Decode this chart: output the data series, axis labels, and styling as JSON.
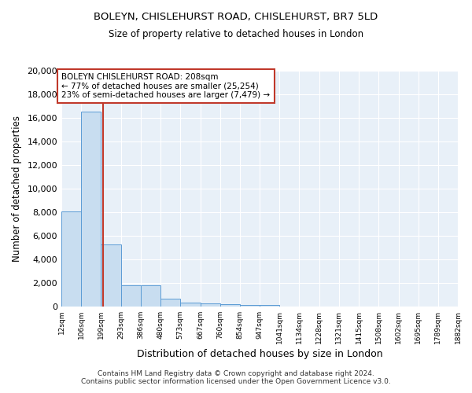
{
  "title1": "BOLEYN, CHISLEHURST ROAD, CHISLEHURST, BR7 5LD",
  "title2": "Size of property relative to detached houses in London",
  "xlabel": "Distribution of detached houses by size in London",
  "ylabel": "Number of detached properties",
  "footnote": "Contains HM Land Registry data © Crown copyright and database right 2024.\nContains public sector information licensed under the Open Government Licence v3.0.",
  "bar_edges": [
    12,
    106,
    199,
    293,
    386,
    480,
    573,
    667,
    760,
    854,
    947,
    1041,
    1134,
    1228,
    1321,
    1415,
    1508,
    1602,
    1695,
    1789,
    1882
  ],
  "bar_heights": [
    8100,
    16500,
    5300,
    1800,
    1800,
    700,
    350,
    250,
    200,
    150,
    150,
    0,
    0,
    0,
    0,
    0,
    0,
    0,
    0,
    0
  ],
  "bar_color": "#c8ddf0",
  "bar_edge_color": "#5b9bd5",
  "background_color": "#e8f0f8",
  "grid_color": "#ffffff",
  "property_size": 208,
  "vline_color": "#c0392b",
  "annotation_text": "BOLEYN CHISLEHURST ROAD: 208sqm\n← 77% of detached houses are smaller (25,254)\n23% of semi-detached houses are larger (7,479) →",
  "annotation_box_color": "#c0392b",
  "ylim": [
    0,
    20000
  ],
  "yticks": [
    0,
    2000,
    4000,
    6000,
    8000,
    10000,
    12000,
    14000,
    16000,
    18000,
    20000
  ]
}
